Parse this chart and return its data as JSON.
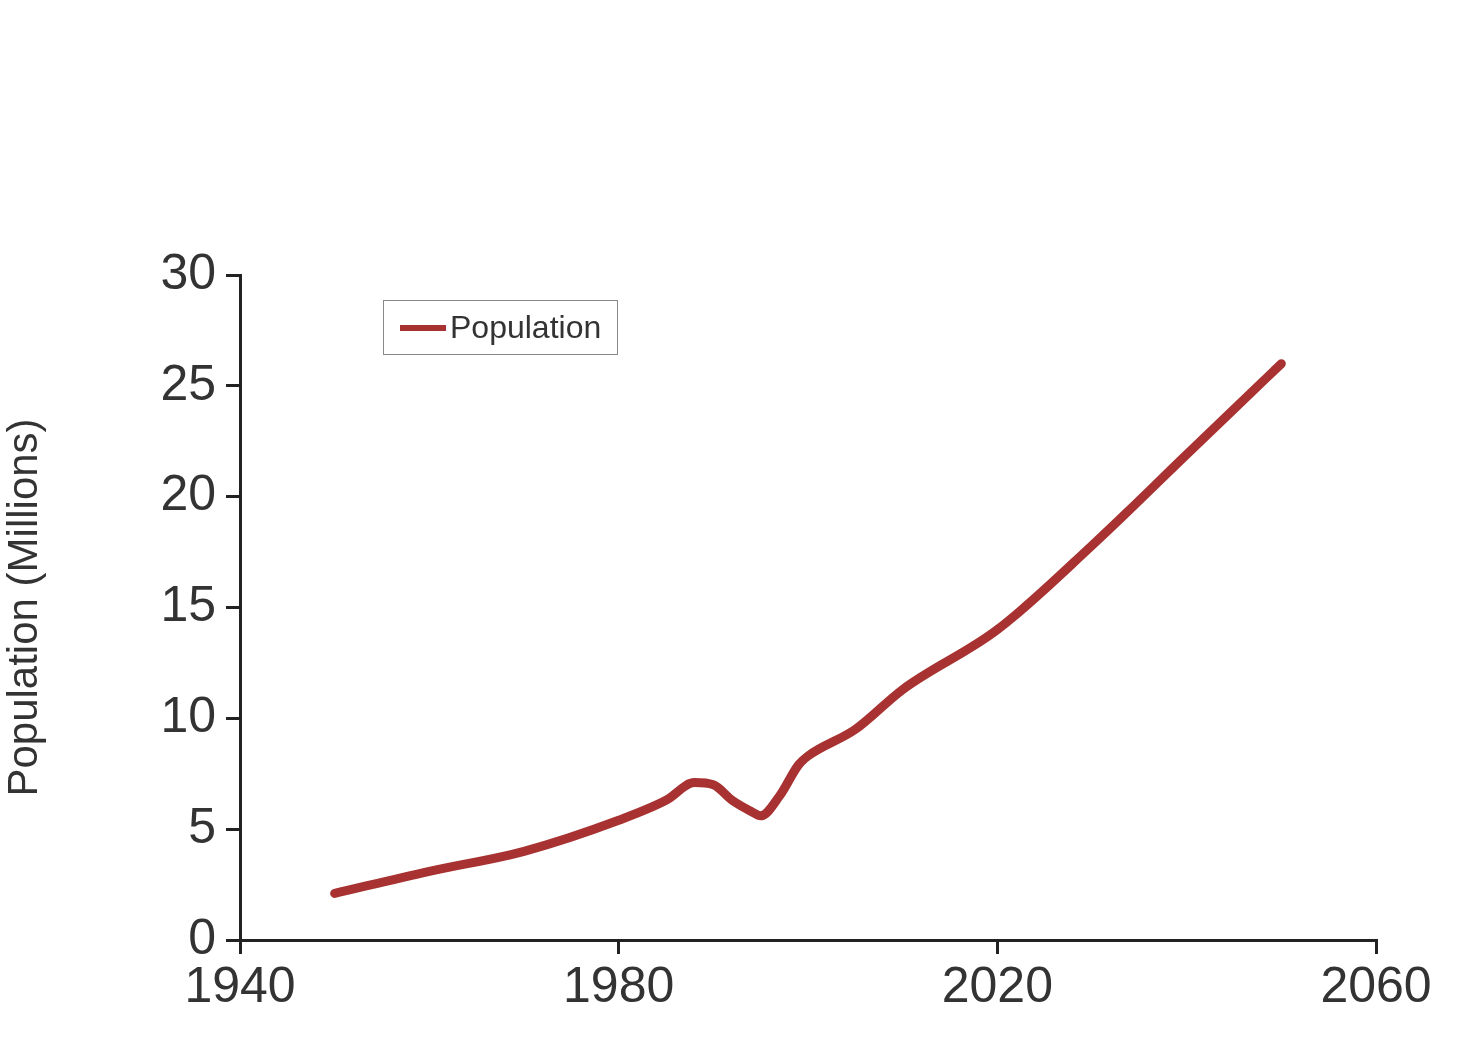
{
  "chart_data": {
    "type": "line",
    "xlabel": null,
    "ylabel": "Population (Millions)",
    "x": [
      1950,
      1960,
      1970,
      1980,
      1985,
      1988,
      1990,
      1992,
      1994,
      1995,
      1997,
      1999,
      2000,
      2005,
      2010,
      2020,
      2030,
      2040,
      2050
    ],
    "series": [
      {
        "name": "Population",
        "color": "#a83232",
        "values": [
          2.1,
          3.1,
          4.0,
          5.4,
          6.3,
          7.1,
          7.0,
          6.3,
          5.8,
          5.6,
          6.5,
          7.9,
          8.3,
          9.5,
          11.3,
          14.0,
          17.8,
          21.9,
          26.0
        ]
      }
    ],
    "xlim": [
      1940,
      2060
    ],
    "xticks": [
      1940,
      1980,
      2020,
      2060
    ],
    "ylim": [
      0,
      30
    ],
    "yticks": [
      0,
      5,
      10,
      15,
      20,
      25,
      30
    ],
    "grid": false,
    "legend": "top left",
    "marker": "none",
    "line_style": "solid"
  }
}
